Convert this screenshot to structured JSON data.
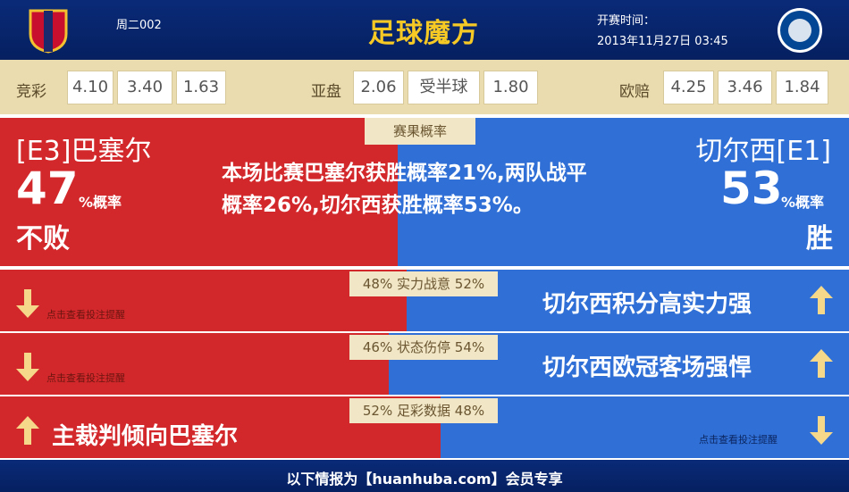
{
  "header": {
    "match_no": "周二002",
    "logo_text": "足球魔方",
    "kickoff_label": "开赛时间：",
    "kickoff_time": "2013年11月27日 03:45"
  },
  "odds": {
    "jingcai": {
      "label": "竞彩",
      "values": [
        "4.10",
        "3.40",
        "1.63"
      ]
    },
    "yapan": {
      "label": "亚盘",
      "values": [
        "2.06",
        "受半球",
        "1.80"
      ]
    },
    "oupei": {
      "label": "欧赔",
      "values": [
        "4.25",
        "3.46",
        "1.84"
      ]
    }
  },
  "probability": {
    "tab": "赛果概率",
    "home": {
      "team": "[E3]巴塞尔",
      "percent": "47",
      "unit": "%概率",
      "outcome": "不败"
    },
    "away": {
      "team": "切尔西[E1]",
      "percent": "53",
      "unit": "%概率",
      "outcome": "胜"
    },
    "summary": "本场比赛巴塞尔获胜概率21%,两队战平概率26%,切尔西获胜概率53%。"
  },
  "rows": [
    {
      "left_pct": "48%",
      "label": "实力战意",
      "right_pct": "52%",
      "left_text": "点击查看投注提醒",
      "right_text": "切尔西积分高实力强"
    },
    {
      "left_pct": "46%",
      "label": "状态伤停",
      "right_pct": "54%",
      "left_text": "点击查看投注提醒",
      "right_text": "切尔西欧冠客场强悍"
    },
    {
      "left_pct": "52%",
      "label": "足彩数据",
      "right_pct": "48%",
      "left_text": "主裁判倾向巴塞尔",
      "right_text": "点击查看投注提醒"
    }
  ],
  "footer": "以下情报为【huanhuba.com】会员专享"
}
